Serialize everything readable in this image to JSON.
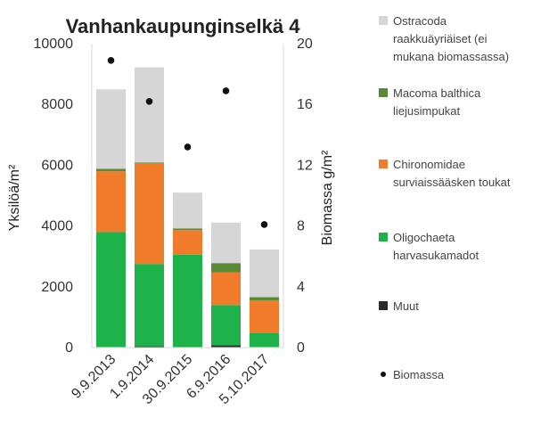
{
  "chart_data": {
    "type": "bar",
    "title": "Vanhankaupunginselkä 4",
    "ylabel": "Yksilöä/m²",
    "y2label": "Biomassa g/m²",
    "ylim": [
      0,
      10000
    ],
    "y2lim": [
      0,
      20
    ],
    "yticks": [
      "0",
      "2000",
      "4000",
      "6000",
      "8000",
      "10000"
    ],
    "y2ticks": [
      "0",
      "4",
      "8",
      "12",
      "16",
      "20"
    ],
    "categories": [
      "9.9.2013",
      "1.9.2014",
      "30.9.2015",
      "6.9.2016",
      "5.10.2017"
    ],
    "series": [
      {
        "key": "muut",
        "color": "#2b2b2b",
        "values": [
          20,
          40,
          20,
          80,
          20
        ]
      },
      {
        "key": "oligo",
        "color": "#1db34a",
        "values": [
          3780,
          2710,
          3040,
          1320,
          460
        ]
      },
      {
        "key": "chiro",
        "color": "#f07b2a",
        "values": [
          2000,
          3320,
          800,
          1070,
          1070
        ]
      },
      {
        "key": "macoma",
        "color": "#5a8a35",
        "values": [
          80,
          20,
          60,
          310,
          110
        ]
      },
      {
        "key": "ostra",
        "color": "#d6d6d6",
        "values": [
          2620,
          3130,
          1180,
          1330,
          1570
        ]
      }
    ],
    "biomass": [
      18.9,
      16.2,
      13.2,
      16.9,
      8.1
    ],
    "legend_position": "right"
  },
  "legend": {
    "ostra": [
      "Ostracoda",
      "raakkuäyriäiset (ei",
      "mukana biomassassa)"
    ],
    "macoma": [
      "Macoma balthica",
      "liejusimpukat"
    ],
    "chiro": [
      "Chironomidae",
      "surviaissääsken toukat"
    ],
    "oligo": [
      "Oligochaeta",
      "harvasukamadot"
    ],
    "muut": [
      "Muut"
    ],
    "biomassa": [
      "Biomassa"
    ]
  }
}
